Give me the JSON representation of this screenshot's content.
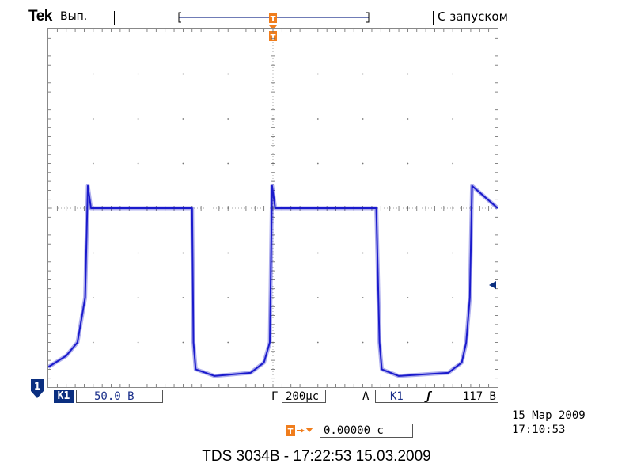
{
  "header": {
    "brand": "Tek",
    "run_mode": "Вып.",
    "trigger_mode": "С запуском"
  },
  "markers": {
    "trigger_point": "T",
    "channel_ground": "1"
  },
  "bottom_bar": {
    "channel_label": "К1",
    "volts_per_div": "50.0 В",
    "timebase_label": "Г",
    "timebase_value": "200µс",
    "trigger_type": "А",
    "trigger_source": "К1",
    "trigger_slope": "ʃ",
    "trigger_level": "117 В"
  },
  "trigger_position": {
    "value": "0.00000 с"
  },
  "datetime": {
    "date": "15 Мар 2009",
    "time": "17:10:53"
  },
  "footer": {
    "caption": "TDS 3034B - 17:22:53   15.03.2009"
  },
  "colors": {
    "trace": "#1a1acc",
    "trigger": "#f07d1c",
    "channel_marker": "#0b2f80"
  },
  "chart_data": {
    "type": "line",
    "title": "",
    "xlabel": "",
    "ylabel": "",
    "x_unit": "divisions",
    "y_unit": "divisions",
    "xlim": [
      -5,
      5
    ],
    "ylim": [
      -4,
      4
    ],
    "grid": true,
    "series": [
      {
        "name": "",
        "x": [
          -5.0,
          -4.6,
          -4.35,
          -4.18,
          -4.12,
          -4.05,
          -2.0,
          -1.8,
          -1.77,
          -1.72,
          -1.3,
          -0.5,
          -0.2,
          -0.07,
          -0.02,
          0.05,
          2.3,
          2.37,
          2.42,
          2.8,
          3.9,
          4.2,
          4.3,
          4.38,
          4.43,
          5.0
        ],
        "y": [
          -3.55,
          -3.3,
          -3.0,
          -2.0,
          0.5,
          0.0,
          0.0,
          0.0,
          -3.0,
          -3.6,
          -3.75,
          -3.68,
          -3.45,
          -3.0,
          0.5,
          0.0,
          0.0,
          -3.0,
          -3.6,
          -3.75,
          -3.68,
          -3.45,
          -3.0,
          -2.0,
          0.5,
          0.0
        ]
      }
    ]
  }
}
